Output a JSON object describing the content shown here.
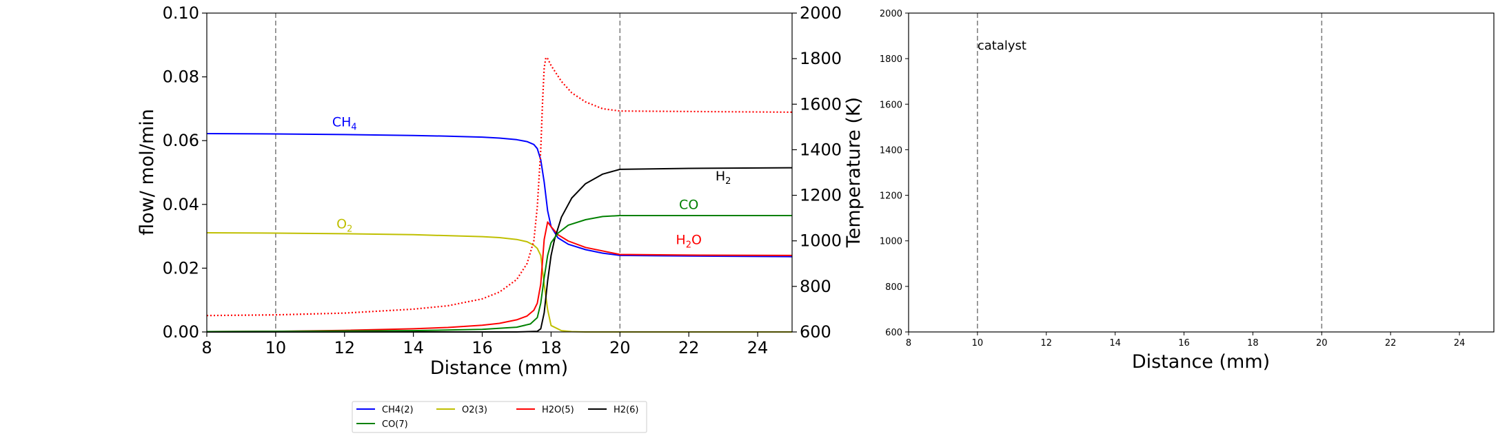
{
  "chart_data": [
    {
      "type": "line",
      "xlabel": "Distance (mm)",
      "ylabel_left": "flow/ mol/min",
      "ylabel_right": "Temperature (K)",
      "xlim": [
        8,
        25
      ],
      "ylim_left": [
        0,
        0.1
      ],
      "ylim_right": [
        600,
        2000
      ],
      "xticks": [
        8,
        10,
        12,
        14,
        16,
        18,
        20,
        22,
        24
      ],
      "yticks_left": [
        "0.00",
        "0.02",
        "0.04",
        "0.06",
        "0.08",
        "0.10"
      ],
      "yticks_right": [
        600,
        800,
        1000,
        1200,
        1400,
        1600,
        1800,
        2000
      ],
      "vlines": [
        10,
        20
      ],
      "annotations": [
        {
          "text": "CH",
          "sub": "4",
          "x": 12.0,
          "y": 0.0645,
          "color": "#0000ff"
        },
        {
          "text": "O",
          "sub": "2",
          "x": 12.0,
          "y": 0.0325,
          "color": "#bfbf00"
        },
        {
          "text": "H",
          "sub": "2",
          "x": 23.0,
          "y": 0.0475,
          "color": "#000000"
        },
        {
          "text": "CO",
          "sub": "",
          "x": 22.0,
          "y": 0.0385,
          "color": "#008000"
        },
        {
          "text": "H",
          "sub": "2",
          "text2": "O",
          "x": 22.0,
          "y": 0.0275,
          "color": "#ff0000"
        }
      ],
      "series": [
        {
          "name": "CH4(2)",
          "color": "#0000ff",
          "axis": "left",
          "style": "solid",
          "x": [
            8,
            10,
            12,
            14,
            15,
            16,
            16.5,
            17,
            17.3,
            17.5,
            17.6,
            17.7,
            17.8,
            17.9,
            18,
            18.2,
            18.5,
            19,
            19.5,
            20,
            22,
            25
          ],
          "y": [
            0.0622,
            0.0621,
            0.0619,
            0.0616,
            0.0614,
            0.0611,
            0.0608,
            0.0603,
            0.0597,
            0.0588,
            0.0575,
            0.054,
            0.047,
            0.038,
            0.033,
            0.0295,
            0.0275,
            0.0258,
            0.0247,
            0.024,
            0.0238,
            0.0236
          ]
        },
        {
          "name": "O2(3)",
          "color": "#bfbf00",
          "axis": "left",
          "style": "solid",
          "x": [
            8,
            10,
            12,
            14,
            16,
            16.5,
            17,
            17.3,
            17.5,
            17.6,
            17.7,
            17.8,
            17.9,
            18,
            18.3,
            18.6,
            19,
            20,
            25
          ],
          "y": [
            0.0311,
            0.031,
            0.0308,
            0.0305,
            0.0299,
            0.0296,
            0.029,
            0.0283,
            0.0272,
            0.0262,
            0.024,
            0.015,
            0.007,
            0.002,
            0.0004,
            0.0001,
            0.0,
            0.0,
            0.0
          ]
        },
        {
          "name": "H2O(5)",
          "color": "#ff0000",
          "axis": "left",
          "style": "solid",
          "x": [
            8,
            10,
            12,
            14,
            15,
            16,
            16.5,
            17,
            17.3,
            17.5,
            17.6,
            17.7,
            17.8,
            17.9,
            18,
            18.2,
            18.5,
            19,
            20,
            22,
            25
          ],
          "y": [
            0.0001,
            0.0002,
            0.0005,
            0.001,
            0.0014,
            0.0021,
            0.0027,
            0.0038,
            0.005,
            0.0068,
            0.009,
            0.015,
            0.029,
            0.0345,
            0.033,
            0.0305,
            0.0285,
            0.0265,
            0.0243,
            0.0241,
            0.024
          ]
        },
        {
          "name": "H2(6)",
          "color": "#000000",
          "axis": "left",
          "style": "solid",
          "x": [
            8,
            10,
            14,
            17,
            17.6,
            17.7,
            17.8,
            17.9,
            18,
            18.1,
            18.3,
            18.6,
            19,
            19.5,
            20,
            22,
            25
          ],
          "y": [
            0.0,
            0.0,
            0.0,
            0.0,
            0.0002,
            0.001,
            0.006,
            0.016,
            0.024,
            0.029,
            0.036,
            0.042,
            0.0465,
            0.0495,
            0.051,
            0.0513,
            0.0515
          ]
        },
        {
          "name": "CO(7)",
          "color": "#008000",
          "axis": "left",
          "style": "solid",
          "x": [
            8,
            10,
            14,
            16,
            17,
            17.4,
            17.6,
            17.7,
            17.8,
            17.9,
            18,
            18.2,
            18.5,
            19,
            19.5,
            20,
            25
          ],
          "y": [
            0.0001,
            0.0002,
            0.0004,
            0.0008,
            0.0015,
            0.0025,
            0.0045,
            0.009,
            0.017,
            0.024,
            0.028,
            0.031,
            0.0335,
            0.0352,
            0.0362,
            0.0365,
            0.0365
          ]
        },
        {
          "name": "",
          "color": "#ff0000",
          "axis": "right",
          "style": "dotted",
          "x": [
            8,
            10,
            12,
            14,
            15,
            16,
            16.5,
            17,
            17.3,
            17.5,
            17.6,
            17.7,
            17.75,
            17.8,
            17.85,
            17.9,
            18,
            18.3,
            18.6,
            19,
            19.5,
            20,
            22,
            25
          ],
          "y": [
            672,
            675,
            683,
            700,
            715,
            745,
            775,
            830,
            900,
            1000,
            1150,
            1400,
            1600,
            1760,
            1805,
            1800,
            1770,
            1700,
            1650,
            1610,
            1580,
            1570,
            1568,
            1565
          ]
        }
      ],
      "legend": {
        "placement": "bottom-center",
        "ncol": 4
      }
    },
    {
      "type": "line",
      "xlabel": "Distance (mm)",
      "xlim": [
        8,
        25
      ],
      "ylim": [
        600,
        2000
      ],
      "xticks": [
        8,
        10,
        12,
        14,
        16,
        18,
        20,
        22,
        24
      ],
      "yticks": [
        600,
        800,
        1000,
        1200,
        1400,
        1600,
        1800,
        2000
      ],
      "vlines": [
        10,
        20
      ],
      "annotations": [
        {
          "text": "catalyst",
          "x": 10,
          "y": 1840
        }
      ],
      "series": []
    }
  ]
}
